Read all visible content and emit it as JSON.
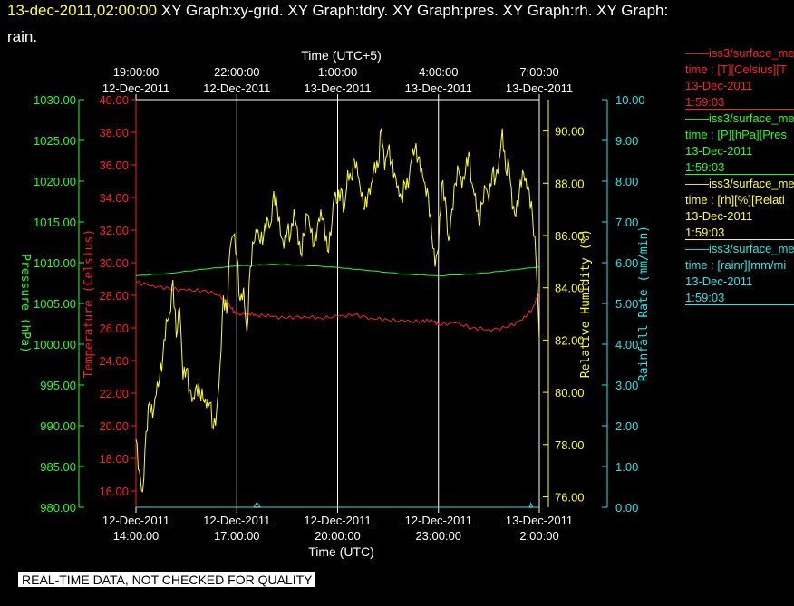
{
  "header": {
    "timestamp": "13-dec-2011,02:00:00",
    "titles_line1": " XY Graph:xy-grid.  XY Graph:tdry.  XY Graph:pres.  XY Graph:rh.  XY Graph:",
    "titles_line2": "rain."
  },
  "legend": [
    {
      "name": "——iss3/surface_me",
      "units": "time : [T][Celsius][T",
      "date": "13-Dec-2011",
      "time": "1:59:03",
      "color": "#ff2020"
    },
    {
      "name": "——iss3/surface_me",
      "units": "time : [P][hPa][Pres",
      "date": "13-Dec-2011",
      "time": "1:59:03",
      "color": "#20ff20"
    },
    {
      "name": "——iss3/surface_me",
      "units": "time : [rh][%][Relati",
      "date": "13-Dec-2011",
      "time": "1:59:03",
      "color": "#ffff20"
    },
    {
      "name": "——iss3/surface_me",
      "units": "time : [rainr][mm/mi",
      "date": "13-Dec-2011",
      "time": "1:59:03",
      "color": "#20e8e8"
    }
  ],
  "footer": {
    "qc_note": "REAL-TIME DATA, NOT CHECKED FOR QUALITY"
  },
  "chart_data": {
    "type": "line",
    "grid": "vertical",
    "colors": {
      "temperature": "#ff2020",
      "pressure": "#20ff20",
      "humidity": "#ffff20",
      "rain": "#20e8e8"
    },
    "x_bottom": {
      "label": "Time (UTC)",
      "ticks": [
        {
          "date": "12-Dec-2011",
          "time": "14:00:00",
          "h": 0
        },
        {
          "date": "12-Dec-2011",
          "time": "17:00:00",
          "h": 3
        },
        {
          "date": "12-Dec-2011",
          "time": "20:00:00",
          "h": 6
        },
        {
          "date": "12-Dec-2011",
          "time": "23:00:00",
          "h": 9
        },
        {
          "date": "13-Dec-2011",
          "time": "2:00:00",
          "h": 12
        }
      ],
      "range_hours_from_first_tick": [
        0,
        12
      ]
    },
    "x_top": {
      "label": "Time (UTC+5)",
      "ticks": [
        {
          "time": "19:00:00",
          "date": "12-Dec-2011",
          "h": 0
        },
        {
          "time": "22:00:00",
          "date": "12-Dec-2011",
          "h": 3
        },
        {
          "time": "1:00:00",
          "date": "13-Dec-2011",
          "h": 6
        },
        {
          "time": "4:00:00",
          "date": "13-Dec-2011",
          "h": 9
        },
        {
          "time": "7:00:00",
          "date": "13-Dec-2011",
          "h": 12
        }
      ]
    },
    "axes": {
      "pressure": {
        "label": "Pressure (hPa)",
        "range": [
          980,
          1030
        ],
        "ticks": [
          "980.00",
          "985.00",
          "990.00",
          "995.00",
          "1000.00",
          "1005.00",
          "1010.00",
          "1015.00",
          "1020.00",
          "1025.00",
          "1030.00"
        ]
      },
      "temperature": {
        "label": "Temperature (Celsius)",
        "range": [
          15,
          40
        ],
        "ticks": [
          "16.00",
          "18.00",
          "20.00",
          "22.00",
          "24.00",
          "26.00",
          "28.00",
          "30.00",
          "32.00",
          "34.00",
          "36.00",
          "38.00",
          "40.00"
        ]
      },
      "humidity": {
        "label": "Relative Humidity (%)",
        "range": [
          75.6,
          91.2
        ],
        "ticks": [
          "76.00",
          "78.00",
          "80.00",
          "82.00",
          "84.00",
          "86.00",
          "88.00",
          "90.00"
        ]
      },
      "rain": {
        "label": "Rainfall Rate (mm/min)",
        "range": [
          0,
          10
        ],
        "ticks": [
          "0.00",
          "1.00",
          "2.00",
          "3.00",
          "4.00",
          "5.00",
          "6.00",
          "7.00",
          "8.00",
          "9.00",
          "10.00"
        ]
      }
    },
    "series": [
      {
        "name": "temperature",
        "axis": "temperature",
        "points": [
          [
            0,
            28.8
          ],
          [
            0.5,
            28.6
          ],
          [
            1,
            28.4
          ],
          [
            1.5,
            28.3
          ],
          [
            2,
            28.3
          ],
          [
            2.5,
            28.0
          ],
          [
            2.8,
            27.3
          ],
          [
            3,
            26.8
          ],
          [
            3.3,
            26.9
          ],
          [
            3.6,
            26.8
          ],
          [
            4,
            26.7
          ],
          [
            4.5,
            26.6
          ],
          [
            5,
            26.7
          ],
          [
            5.5,
            26.6
          ],
          [
            6,
            26.7
          ],
          [
            6.5,
            26.8
          ],
          [
            7,
            26.6
          ],
          [
            7.5,
            26.5
          ],
          [
            8,
            26.4
          ],
          [
            8.5,
            26.4
          ],
          [
            8.8,
            26.5
          ],
          [
            9,
            26.2
          ],
          [
            9.5,
            26.3
          ],
          [
            10,
            26.0
          ],
          [
            10.5,
            25.9
          ],
          [
            11,
            26.0
          ],
          [
            11.5,
            26.5
          ],
          [
            11.8,
            27.2
          ],
          [
            12,
            28.2
          ]
        ]
      },
      {
        "name": "pressure",
        "axis": "pressure",
        "points": [
          [
            0,
            1008.4
          ],
          [
            1,
            1008.7
          ],
          [
            2,
            1009.2
          ],
          [
            3,
            1009.6
          ],
          [
            4,
            1009.8
          ],
          [
            5,
            1009.7
          ],
          [
            6,
            1009.4
          ],
          [
            7,
            1009.0
          ],
          [
            8,
            1008.6
          ],
          [
            9,
            1008.4
          ],
          [
            10,
            1008.6
          ],
          [
            11,
            1009.0
          ],
          [
            12,
            1009.5
          ]
        ]
      },
      {
        "name": "humidity",
        "axis": "humidity",
        "points": [
          [
            0,
            78.2
          ],
          [
            0.1,
            77.0
          ],
          [
            0.2,
            76.2
          ],
          [
            0.3,
            78.5
          ],
          [
            0.4,
            79.6
          ],
          [
            0.5,
            79.0
          ],
          [
            0.6,
            79.9
          ],
          [
            0.7,
            80.5
          ],
          [
            0.8,
            81.4
          ],
          [
            0.9,
            82.8
          ],
          [
            1.0,
            83.0
          ],
          [
            1.1,
            84.3
          ],
          [
            1.2,
            82.1
          ],
          [
            1.3,
            83.2
          ],
          [
            1.4,
            80.5
          ],
          [
            1.5,
            80.9
          ],
          [
            1.6,
            80.1
          ],
          [
            1.7,
            79.8
          ],
          [
            1.8,
            80.3
          ],
          [
            1.9,
            80.0
          ],
          [
            2.0,
            79.7
          ],
          [
            2.1,
            79.4
          ],
          [
            2.2,
            79.6
          ],
          [
            2.3,
            78.6
          ],
          [
            2.4,
            79.3
          ],
          [
            2.5,
            81.0
          ],
          [
            2.6,
            83.7
          ],
          [
            2.7,
            83.0
          ],
          [
            2.8,
            85.5
          ],
          [
            2.9,
            86.0
          ],
          [
            3.0,
            85.2
          ],
          [
            3.1,
            83.5
          ],
          [
            3.2,
            84.0
          ],
          [
            3.3,
            82.3
          ],
          [
            3.4,
            84.8
          ],
          [
            3.5,
            85.7
          ],
          [
            3.6,
            86.1
          ],
          [
            3.7,
            85.7
          ],
          [
            3.8,
            86.0
          ],
          [
            3.9,
            86.7
          ],
          [
            4.0,
            86.4
          ],
          [
            4.1,
            87.7
          ],
          [
            4.2,
            87.1
          ],
          [
            4.3,
            86.0
          ],
          [
            4.4,
            85.5
          ],
          [
            4.5,
            86.2
          ],
          [
            4.6,
            86.0
          ],
          [
            4.7,
            87.0
          ],
          [
            4.8,
            86.3
          ],
          [
            4.9,
            85.3
          ],
          [
            5.0,
            86.0
          ],
          [
            5.1,
            86.8
          ],
          [
            5.2,
            86.1
          ],
          [
            5.3,
            85.6
          ],
          [
            5.4,
            86.4
          ],
          [
            5.5,
            87.0
          ],
          [
            5.6,
            86.5
          ],
          [
            5.7,
            85.4
          ],
          [
            5.8,
            86.0
          ],
          [
            5.9,
            87.5
          ],
          [
            6.0,
            87.2
          ],
          [
            6.1,
            87.8
          ],
          [
            6.2,
            87.0
          ],
          [
            6.3,
            88.5
          ],
          [
            6.4,
            88.2
          ],
          [
            6.5,
            88.9
          ],
          [
            6.6,
            88.3
          ],
          [
            6.7,
            87.5
          ],
          [
            6.8,
            87.0
          ],
          [
            6.9,
            87.6
          ],
          [
            7.0,
            88.0
          ],
          [
            7.1,
            88.8
          ],
          [
            7.2,
            88.6
          ],
          [
            7.3,
            90.1
          ],
          [
            7.4,
            88.5
          ],
          [
            7.5,
            89.3
          ],
          [
            7.6,
            88.8
          ],
          [
            7.7,
            88.4
          ],
          [
            7.8,
            87.9
          ],
          [
            7.9,
            87.4
          ],
          [
            8.0,
            88.0
          ],
          [
            8.1,
            87.8
          ],
          [
            8.2,
            88.9
          ],
          [
            8.3,
            89.3
          ],
          [
            8.4,
            89.0
          ],
          [
            8.5,
            88.6
          ],
          [
            8.6,
            88.0
          ],
          [
            8.7,
            87.5
          ],
          [
            8.8,
            86.0
          ],
          [
            8.9,
            84.8
          ],
          [
            9.0,
            85.5
          ],
          [
            9.1,
            88.0
          ],
          [
            9.2,
            87.5
          ],
          [
            9.3,
            85.8
          ],
          [
            9.4,
            87.0
          ],
          [
            9.5,
            88.0
          ],
          [
            9.6,
            88.5
          ],
          [
            9.7,
            87.8
          ],
          [
            9.8,
            88.4
          ],
          [
            9.9,
            89.2
          ],
          [
            10.0,
            88.0
          ],
          [
            10.1,
            87.6
          ],
          [
            10.2,
            86.5
          ],
          [
            10.3,
            87.2
          ],
          [
            10.4,
            87.8
          ],
          [
            10.5,
            87.3
          ],
          [
            10.6,
            88.4
          ],
          [
            10.7,
            88.2
          ],
          [
            10.8,
            88.9
          ],
          [
            10.9,
            90.1
          ],
          [
            11.0,
            88.5
          ],
          [
            11.1,
            88.7
          ],
          [
            11.2,
            87.0
          ],
          [
            11.3,
            86.7
          ],
          [
            11.4,
            87.6
          ],
          [
            11.5,
            88.5
          ],
          [
            11.6,
            88.2
          ],
          [
            11.7,
            87.7
          ],
          [
            11.8,
            86.7
          ],
          [
            11.9,
            85.1
          ],
          [
            12.0,
            82.0
          ]
        ]
      },
      {
        "name": "rain",
        "axis": "rain",
        "points": [
          [
            0,
            0.0
          ],
          [
            3.5,
            0.0
          ],
          [
            3.6,
            0.12
          ],
          [
            3.7,
            0.0
          ],
          [
            11.7,
            0.0
          ],
          [
            11.75,
            0.1
          ],
          [
            11.8,
            0.0
          ],
          [
            12,
            0.0
          ]
        ]
      }
    ]
  }
}
